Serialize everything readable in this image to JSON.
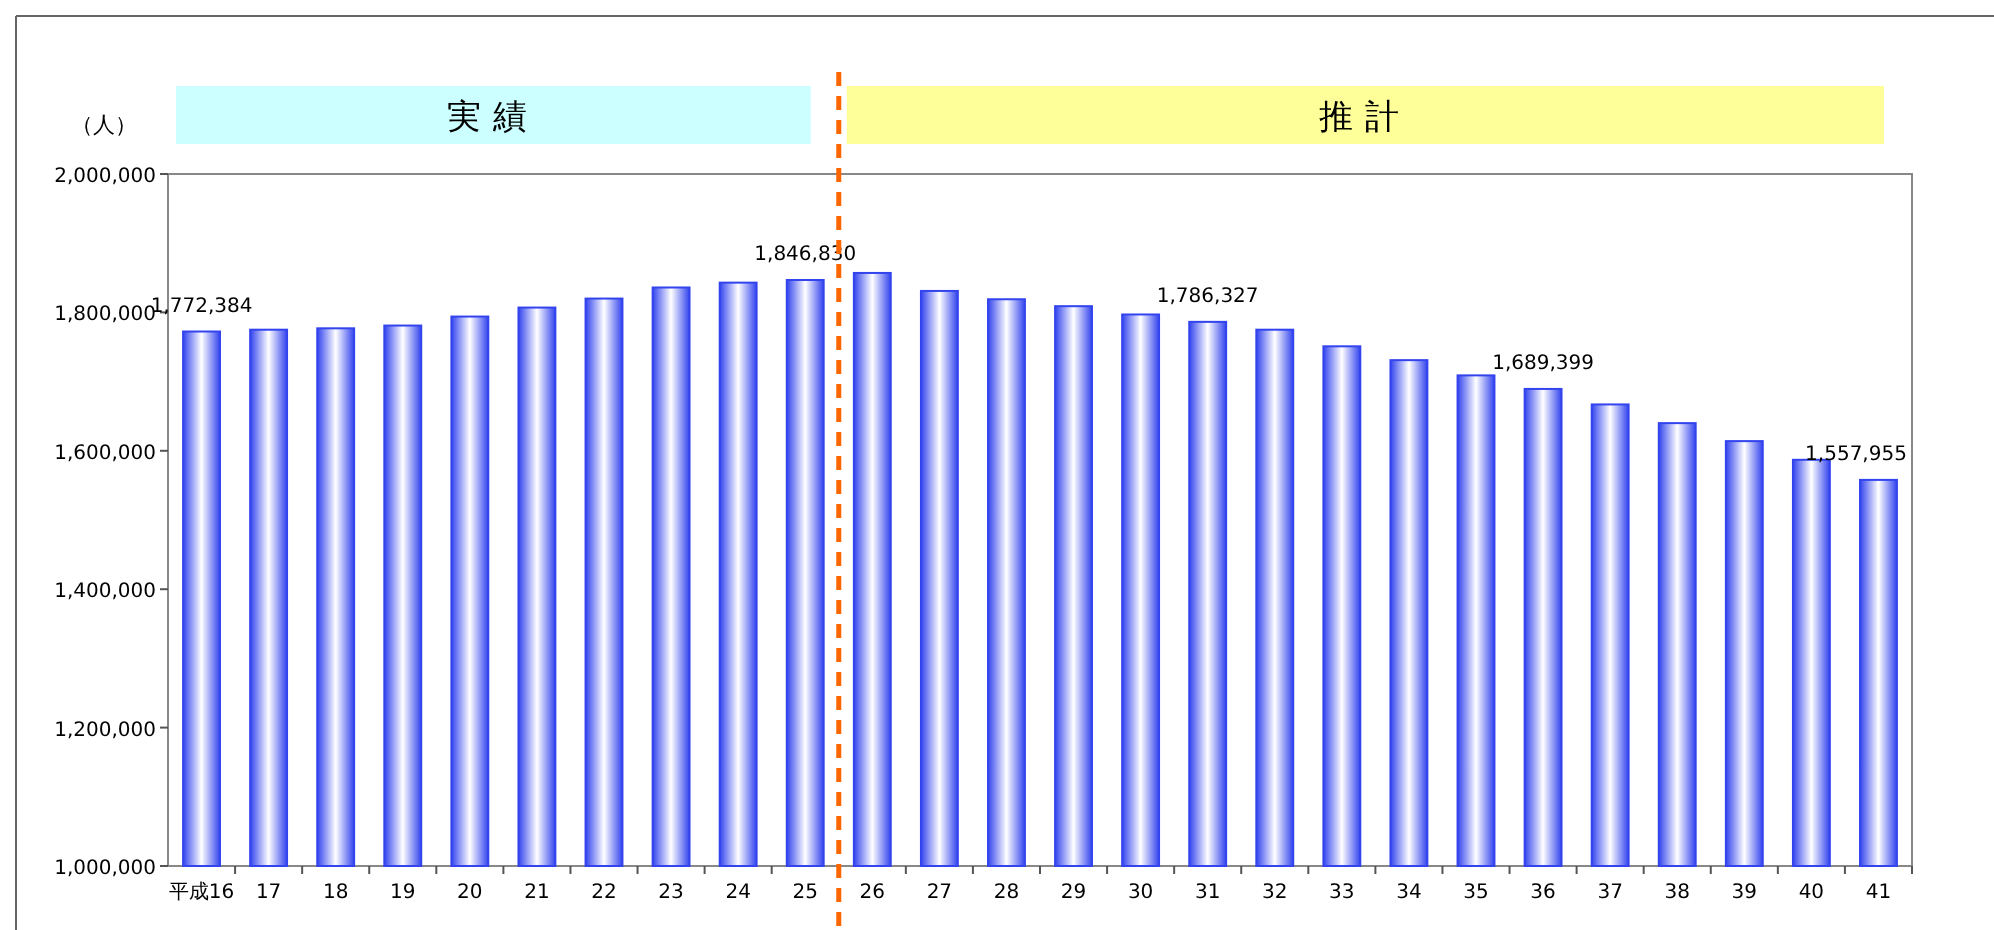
{
  "chart_data": {
    "type": "bar",
    "ylabel": "（人）",
    "categories": [
      "平成16",
      "17",
      "18",
      "19",
      "20",
      "21",
      "22",
      "23",
      "24",
      "25",
      "26",
      "27",
      "28",
      "29",
      "30",
      "31",
      "32",
      "33",
      "34",
      "35",
      "36",
      "37",
      "38",
      "39",
      "40",
      "41"
    ],
    "values": [
      1772384,
      1775000,
      1777000,
      1781000,
      1794000,
      1807000,
      1820000,
      1836000,
      1843000,
      1846830,
      1857000,
      1831000,
      1819000,
      1809000,
      1797000,
      1786327,
      1775000,
      1751000,
      1731000,
      1709000,
      1689399,
      1667000,
      1640000,
      1614000,
      1587000,
      1557955
    ],
    "value_labels": [
      "1,772,384",
      null,
      null,
      null,
      null,
      null,
      null,
      null,
      null,
      "1,846,830",
      null,
      null,
      null,
      null,
      null,
      "1,786,327",
      null,
      null,
      null,
      null,
      "1,689,399",
      null,
      null,
      null,
      null,
      "1,557,955"
    ],
    "color": "#3344ee",
    "ylim": [
      1000000,
      2000000
    ],
    "yticks": [
      {
        "value": 1000000,
        "label": "1,000,000"
      },
      {
        "value": 1200000,
        "label": "1,200,000"
      },
      {
        "value": 1400000,
        "label": "1,400,000"
      },
      {
        "value": 1600000,
        "label": "1,600,000"
      },
      {
        "value": 1800000,
        "label": "1,800,000"
      },
      {
        "value": 2000000,
        "label": "2,000,000"
      }
    ],
    "grid": false,
    "annotations": [
      "実績",
      "推計"
    ]
  }
}
